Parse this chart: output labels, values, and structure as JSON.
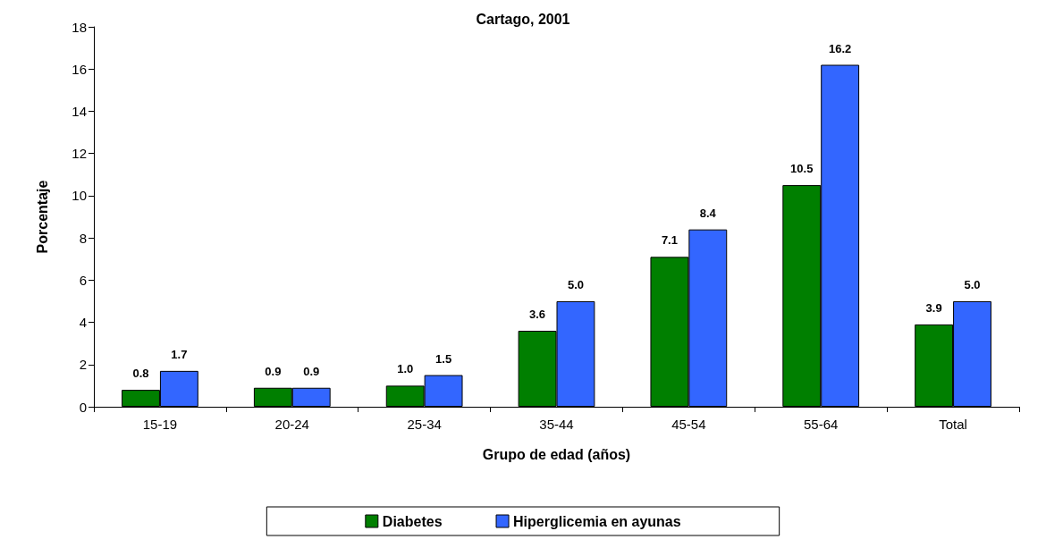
{
  "chart_data": {
    "type": "bar",
    "title": "Cartago, 2001",
    "xlabel": "Grupo de edad (años)",
    "ylabel": "Porcentaje",
    "categories": [
      "15-19",
      "20-24",
      "25-34",
      "35-44",
      "45-54",
      "55-64",
      "Total"
    ],
    "series": [
      {
        "name": "Diabetes",
        "color": "#007f00",
        "values": [
          0.8,
          0.9,
          1.0,
          3.6,
          7.1,
          10.5,
          3.9
        ],
        "value_labels": [
          "0.8",
          "0.9",
          "1.0",
          "3.6",
          "7.1",
          "10.5",
          "3.9"
        ]
      },
      {
        "name": "Hiperglicemia en ayunas",
        "color": "#3366ff",
        "values": [
          1.7,
          0.9,
          1.5,
          5.0,
          8.4,
          16.2,
          5.0
        ],
        "value_labels": [
          "1.7",
          "0.9",
          "1.5",
          "5.0",
          "8.4",
          "16.2",
          "5.0"
        ]
      }
    ],
    "ylim": [
      0,
      18
    ],
    "yticks": [
      0,
      2,
      4,
      6,
      8,
      10,
      12,
      14,
      16,
      18
    ],
    "grid": false,
    "legend": "bottom"
  }
}
